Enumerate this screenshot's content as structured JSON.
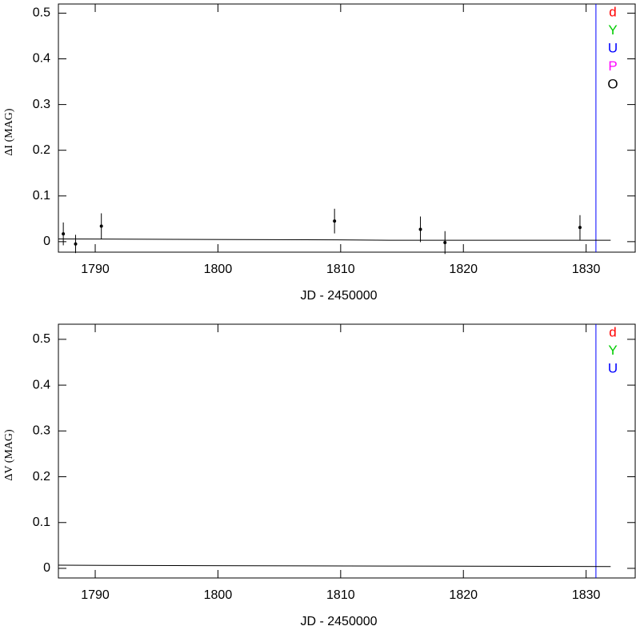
{
  "chart_data": [
    {
      "type": "scatter",
      "ylabel": "ΔI (MAG)",
      "xlabel": "JD - 2450000",
      "xlim": [
        1787,
        1834
      ],
      "ylim": [
        -0.023,
        0.52
      ],
      "xticks": [
        1790,
        1800,
        1810,
        1820,
        1830
      ],
      "yticks": [
        0,
        0.1,
        0.2,
        0.3,
        0.4,
        0.5
      ],
      "points": {
        "color": "#000000",
        "x": [
          1787.4,
          1788.4,
          1790.5,
          1809.5,
          1816.5,
          1818.5,
          1829.5
        ],
        "values": [
          0.017,
          -0.005,
          0.034,
          0.045,
          0.027,
          -0.002,
          0.031
        ],
        "errors": [
          0.025,
          0.02,
          0.028,
          0.027,
          0.028,
          0.025,
          0.027
        ]
      },
      "model": {
        "color": "#000000",
        "x": [
          1787,
          1796.5,
          1809.7,
          1814,
          1832
        ],
        "values": [
          0.006,
          0.005,
          0.004,
          0.003,
          0.003
        ]
      },
      "vline": {
        "x": 1830.8,
        "color": "#0000ff"
      },
      "legend": [
        {
          "text": "d",
          "color": "#ff0000"
        },
        {
          "text": "Y",
          "color": "#00cc00"
        },
        {
          "text": "U",
          "color": "#0000ff"
        },
        {
          "text": "P",
          "color": "#ff00ff"
        },
        {
          "text": "O",
          "color": "#000000"
        }
      ]
    },
    {
      "type": "scatter",
      "ylabel": "ΔV (MAG)",
      "xlabel": "JD - 2450000",
      "xlim": [
        1787,
        1834
      ],
      "ylim": [
        -0.021,
        0.533
      ],
      "xticks": [
        1790,
        1800,
        1810,
        1820,
        1830
      ],
      "yticks": [
        0,
        0.1,
        0.2,
        0.3,
        0.4,
        0.5
      ],
      "model": {
        "color": "#000000",
        "x": [
          1787,
          1796.5,
          1814,
          1832
        ],
        "values": [
          0.007,
          0.006,
          0.005,
          0.004
        ]
      },
      "vline": {
        "x": 1830.8,
        "color": "#0000ff"
      },
      "legend": [
        {
          "text": "d",
          "color": "#ff0000"
        },
        {
          "text": "Y",
          "color": "#00cc00"
        },
        {
          "text": "U",
          "color": "#0000ff"
        }
      ]
    }
  ]
}
